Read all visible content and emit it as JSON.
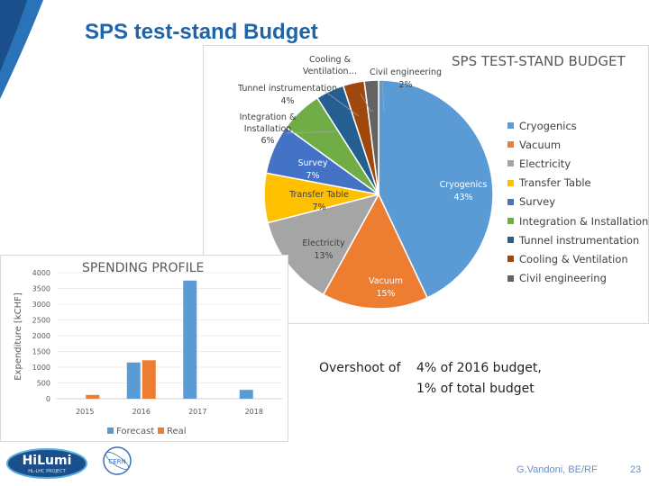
{
  "slide": {
    "title": "SPS test-stand Budget",
    "note_line1_prefix": "Overshoot of",
    "note_line1_value": "4% of 2016 budget,",
    "note_line2": "1% of total budget",
    "author": "G.Vandoni, BE/RF",
    "page_number": "23",
    "logo_text": "HiLumi",
    "logo_subtext": "HL-LHC PROJECT",
    "cern_text": "CERN"
  },
  "chart_data": [
    {
      "type": "pie",
      "title": "SPS TEST-STAND BUDGET",
      "slices": [
        {
          "label": "Cryogenics",
          "value": 43,
          "display": "43%",
          "color": "#5b9bd5"
        },
        {
          "label": "Vacuum",
          "value": 15,
          "display": "15%",
          "color": "#ed7d31"
        },
        {
          "label": "Electricity",
          "value": 13,
          "display": "13%",
          "color": "#a5a5a5"
        },
        {
          "label": "Transfer Table",
          "value": 7,
          "display": "7%",
          "color": "#ffc000"
        },
        {
          "label": "Survey",
          "value": 7,
          "display": "7%",
          "color": "#4472c4"
        },
        {
          "label": "Integration & Installation",
          "value": 6,
          "display": "6%",
          "color": "#70ad47"
        },
        {
          "label": "Tunnel instrumentation",
          "value": 4,
          "display": "4%",
          "color": "#255e91"
        },
        {
          "label": "Cooling & Ventilation",
          "value": 3,
          "display": "",
          "color": "#9e480e"
        },
        {
          "label": "Civil engineering",
          "value": 2,
          "display": "2%",
          "color": "#636363"
        }
      ],
      "data_labels": {
        "cryogenics": "Cryogenics",
        "vacuum": "Vacuum",
        "electricity": "Electricity",
        "transfer": "Transfer Table",
        "survey": "Survey",
        "integration_1": "Integration &",
        "integration_2": "Installation",
        "tunnel": "Tunnel instrumentation",
        "cooling_1": "Cooling &",
        "cooling_2": "Ventilation…",
        "civil": "Civil engineering"
      },
      "legend": [
        "Cryogenics",
        "Vacuum",
        "Electricity",
        "Transfer Table",
        "Survey",
        "Integration & Installation",
        "Tunnel instrumentation",
        "Cooling & Ventilation",
        "Civil engineering"
      ]
    },
    {
      "type": "bar",
      "title": "SPENDING PROFILE",
      "ylabel": "Expenditure [kCHF]",
      "xlabel": "",
      "categories": [
        "2015",
        "2016",
        "2017",
        "2018"
      ],
      "ylim": [
        0,
        4000
      ],
      "yticks": [
        0,
        500,
        1000,
        1500,
        2000,
        2500,
        3000,
        3500,
        4000
      ],
      "series": [
        {
          "name": "Forecast",
          "color": "#5b9bd5",
          "values": [
            null,
            1150,
            3750,
            280
          ]
        },
        {
          "name": "Real",
          "color": "#ed7d31",
          "values": [
            120,
            1220,
            null,
            null
          ]
        }
      ]
    }
  ]
}
